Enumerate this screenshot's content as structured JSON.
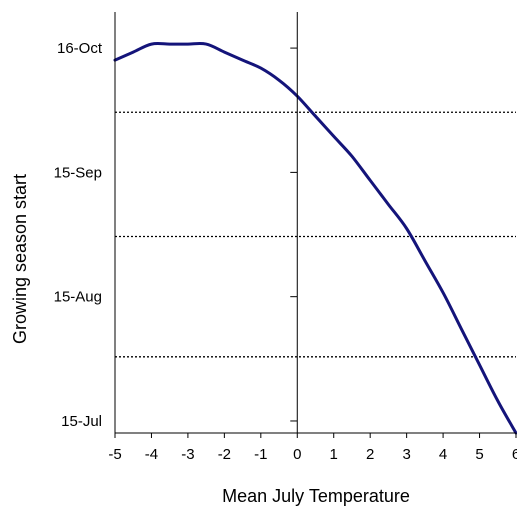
{
  "chart_data": {
    "type": "line",
    "xlabel": "Mean July Temperature",
    "ylabel": "Growing season start",
    "xlim": [
      -5,
      6
    ],
    "ylim": [
      "2000-07-12",
      "2000-10-25"
    ],
    "x_ticks": [
      -5,
      -4,
      -3,
      -2,
      -1,
      0,
      1,
      2,
      3,
      4,
      5,
      6
    ],
    "x_tick_labels": [
      "-5",
      "-4",
      "-3",
      "-2",
      "-1",
      "0",
      "1",
      "2",
      "3",
      "4",
      "5",
      "6"
    ],
    "y_ticks": [
      {
        "label": "15-Jul",
        "date": "2000-07-15"
      },
      {
        "label": "15-Aug",
        "date": "2000-08-15"
      },
      {
        "label": "15-Sep",
        "date": "2000-09-15"
      },
      {
        "label": "16-Oct",
        "date": "2000-10-16"
      }
    ],
    "reference_lines_y": [
      "2000-07-31",
      "2000-08-30",
      "2000-09-30"
    ],
    "vertical_reference_x": 0,
    "series": [
      {
        "color": "#14147a",
        "points": [
          {
            "x": -5.0,
            "y": "2000-10-13"
          },
          {
            "x": -4.5,
            "y": "2000-10-15"
          },
          {
            "x": -4.0,
            "y": "2000-10-17"
          },
          {
            "x": -3.5,
            "y": "2000-10-17"
          },
          {
            "x": -3.0,
            "y": "2000-10-17"
          },
          {
            "x": -2.5,
            "y": "2000-10-17"
          },
          {
            "x": -2.0,
            "y": "2000-10-15"
          },
          {
            "x": -1.5,
            "y": "2000-10-13"
          },
          {
            "x": -1.0,
            "y": "2000-10-11"
          },
          {
            "x": -0.5,
            "y": "2000-10-08"
          },
          {
            "x": 0.0,
            "y": "2000-10-04"
          },
          {
            "x": 0.5,
            "y": "2000-09-29"
          },
          {
            "x": 1.0,
            "y": "2000-09-24"
          },
          {
            "x": 1.5,
            "y": "2000-09-19"
          },
          {
            "x": 2.0,
            "y": "2000-09-13"
          },
          {
            "x": 2.5,
            "y": "2000-09-07"
          },
          {
            "x": 3.0,
            "y": "2000-09-01"
          },
          {
            "x": 3.5,
            "y": "2000-08-24"
          },
          {
            "x": 4.0,
            "y": "2000-08-16"
          },
          {
            "x": 4.5,
            "y": "2000-08-07"
          },
          {
            "x": 5.0,
            "y": "2000-07-29"
          },
          {
            "x": 5.5,
            "y": "2000-07-20"
          },
          {
            "x": 6.0,
            "y": "2000-07-12"
          }
        ]
      }
    ],
    "grid": false,
    "legend": "none"
  }
}
